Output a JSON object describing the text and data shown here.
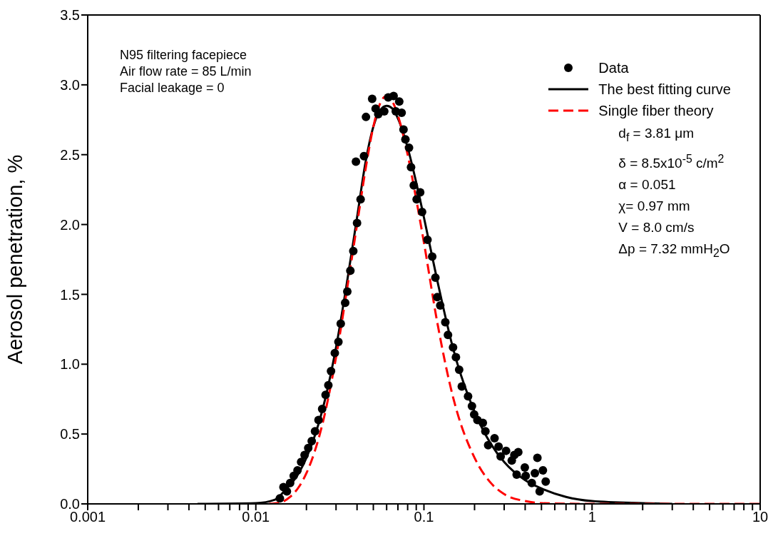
{
  "chart_data": {
    "type": "scatter",
    "ylabel": "Aerosol penetration, %",
    "log": "x",
    "legend": "top right",
    "xlim": [
      0.001,
      10
    ],
    "ylim": [
      0,
      3.5
    ],
    "xticks": [
      0.001,
      {
        "value": 0.002,
        "label": null
      },
      {
        "value": 0.003,
        "label": null
      },
      {
        "value": 0.004,
        "label": null
      },
      {
        "value": 0.005,
        "label": null
      },
      {
        "value": 0.006,
        "label": null
      },
      {
        "value": 0.007,
        "label": null
      },
      {
        "value": 0.008,
        "label": null
      },
      {
        "value": 0.009,
        "label": null
      },
      0.01,
      {
        "value": 0.02,
        "label": null
      },
      {
        "value": 0.03,
        "label": null
      },
      {
        "value": 0.04,
        "label": null
      },
      {
        "value": 0.05,
        "label": null
      },
      {
        "value": 0.06,
        "label": null
      },
      {
        "value": 0.07,
        "label": null
      },
      {
        "value": 0.08,
        "label": null
      },
      {
        "value": 0.09,
        "label": null
      },
      0.1,
      {
        "value": 0.2,
        "label": null
      },
      {
        "value": 0.3,
        "label": null
      },
      {
        "value": 0.4,
        "label": null
      },
      {
        "value": 0.5,
        "label": null
      },
      {
        "value": 0.6,
        "label": null
      },
      {
        "value": 0.7,
        "label": null
      },
      {
        "value": 0.8,
        "label": null
      },
      {
        "value": 0.9,
        "label": null
      },
      1,
      {
        "value": 2,
        "label": null
      },
      {
        "value": 3,
        "label": null
      },
      {
        "value": 4,
        "label": null
      },
      {
        "value": 5,
        "label": null
      },
      {
        "value": 6,
        "label": null
      },
      {
        "value": 7,
        "label": null
      },
      {
        "value": 8,
        "label": null
      },
      {
        "value": 9,
        "label": null
      },
      10
    ],
    "yticks": [
      {
        "value": 0,
        "label": "0.0"
      },
      {
        "value": 0.5,
        "label": "0.5"
      },
      {
        "value": 1,
        "label": "1.0"
      },
      {
        "value": 1.5,
        "label": "1.5"
      },
      {
        "value": 2,
        "label": "2.0"
      },
      {
        "value": 2.5,
        "label": "2.5"
      },
      {
        "value": 3,
        "label": "3.0"
      },
      {
        "value": 3.5,
        "label": "3.5"
      }
    ],
    "annotations": [
      "N95 filtering facepiece",
      "Air flow rate = 85 L/min",
      "Facial leakage = 0",
      "d$_{f}$ = 3.81 μm",
      "δ = 8.5x10$^{-5}$ c/m$^{2}$",
      "α = 0.051",
      "χ= 0.97 mm",
      "V = 8.0 cm/s",
      "Δp = 7.32 mmH$_{2}$O"
    ],
    "series": [
      {
        "name": "Data",
        "marker": "circle",
        "color": "#000000",
        "x": [
          0.0139,
          0.0146,
          0.0153,
          0.016,
          0.0168,
          0.0177,
          0.0186,
          0.0195,
          0.0205,
          0.0215,
          0.0225,
          0.0236,
          0.0248,
          0.026,
          0.027,
          0.028,
          0.0295,
          0.031,
          0.032,
          0.034,
          0.035,
          0.0365,
          0.038,
          0.04,
          0.0394,
          0.042,
          0.044,
          0.0452,
          0.0492,
          0.0516,
          0.0535,
          0.0581,
          0.0613,
          0.066,
          0.068,
          0.0713,
          0.0737,
          0.0756,
          0.0776,
          0.0815,
          0.0838,
          0.087,
          0.0905,
          0.095,
          0.0975,
          0.105,
          0.112,
          0.117,
          0.12,
          0.125,
          0.134,
          0.139,
          0.149,
          0.155,
          0.162,
          0.168,
          0.183,
          0.193,
          0.199,
          0.208,
          0.224,
          0.232,
          0.241,
          0.263,
          0.278,
          0.286,
          0.308,
          0.333,
          0.345,
          0.364,
          0.356,
          0.398,
          0.403,
          0.438,
          0.457,
          0.473,
          0.488,
          0.51,
          0.53
        ],
        "values": [
          0.04,
          0.12,
          0.09,
          0.15,
          0.2,
          0.24,
          0.3,
          0.35,
          0.4,
          0.45,
          0.52,
          0.6,
          0.68,
          0.78,
          0.85,
          0.95,
          1.08,
          1.16,
          1.29,
          1.44,
          1.52,
          1.67,
          1.81,
          2.01,
          2.45,
          2.18,
          2.49,
          2.77,
          2.9,
          2.83,
          2.79,
          2.81,
          2.91,
          2.92,
          2.81,
          2.88,
          2.8,
          2.68,
          2.61,
          2.55,
          2.41,
          2.28,
          2.18,
          2.23,
          2.09,
          1.89,
          1.77,
          1.62,
          1.48,
          1.42,
          1.3,
          1.21,
          1.12,
          1.05,
          0.96,
          0.84,
          0.77,
          0.7,
          0.64,
          0.6,
          0.58,
          0.52,
          0.42,
          0.47,
          0.41,
          0.34,
          0.38,
          0.31,
          0.35,
          0.37,
          0.21,
          0.26,
          0.2,
          0.15,
          0.22,
          0.33,
          0.09,
          0.24,
          0.16
        ]
      },
      {
        "name": "The best fitting curve",
        "type": "line",
        "line_style": "solid",
        "color": "#000000",
        "x": [
          0.0045,
          0.01,
          0.013,
          0.015,
          0.018,
          0.02,
          0.025,
          0.03,
          0.035,
          0.04,
          0.045,
          0.05,
          0.055,
          0.06,
          0.065,
          0.07,
          0.08,
          0.09,
          0.1,
          0.12,
          0.15,
          0.2,
          0.25,
          0.3,
          0.4,
          0.5,
          0.7,
          1,
          2,
          3
        ],
        "values": [
          0,
          0.005,
          0.03,
          0.1,
          0.22,
          0.33,
          0.68,
          1.12,
          1.6,
          2.05,
          2.45,
          2.7,
          2.82,
          2.85,
          2.83,
          2.76,
          2.55,
          2.3,
          2.05,
          1.6,
          1.1,
          0.66,
          0.43,
          0.3,
          0.17,
          0.11,
          0.05,
          0.02,
          0.005,
          0
        ]
      },
      {
        "name": "Single fiber theory",
        "type": "line",
        "line_style": "dashed",
        "color": "#ff0000",
        "x": [
          0.012,
          0.014,
          0.016,
          0.018,
          0.02,
          0.025,
          0.03,
          0.035,
          0.04,
          0.045,
          0.05,
          0.055,
          0.06,
          0.065,
          0.07,
          0.08,
          0.09,
          0.1,
          0.12,
          0.15,
          0.2,
          0.25,
          0.3,
          0.4,
          0.5,
          1,
          10
        ],
        "values": [
          0,
          0.01,
          0.05,
          0.12,
          0.22,
          0.58,
          1.05,
          1.55,
          2.0,
          2.4,
          2.7,
          2.87,
          2.92,
          2.88,
          2.78,
          2.5,
          2.18,
          1.87,
          1.3,
          0.75,
          0.33,
          0.15,
          0.07,
          0.02,
          0.005,
          0,
          0
        ]
      }
    ]
  }
}
